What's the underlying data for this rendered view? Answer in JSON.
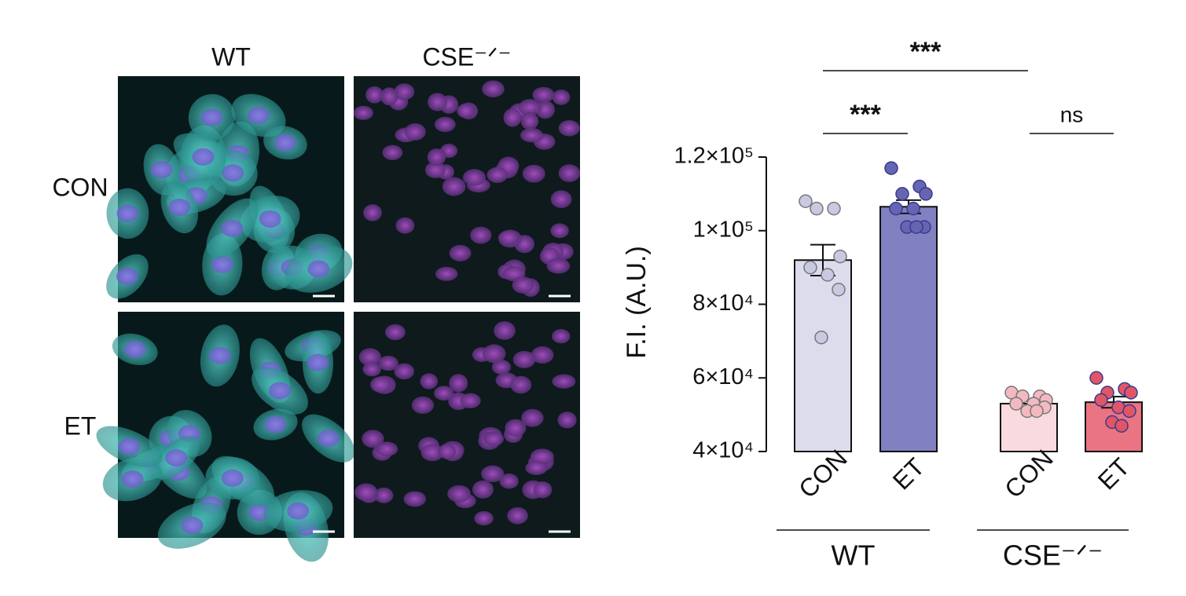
{
  "micrographs": {
    "columns": [
      "WT",
      "CSE⁻ᐟ⁻"
    ],
    "rows": [
      "CON",
      "ET"
    ]
  },
  "chart_data": {
    "type": "bar",
    "y_label": "F.I. (A.U.)",
    "categories": [
      "CON",
      "ET",
      "CON",
      "ET"
    ],
    "groups": [
      "WT",
      "CSE⁻ᐟ⁻"
    ],
    "values": [
      92000,
      106500,
      53000,
      53400
    ],
    "errors": [
      4200,
      1800,
      800,
      1500
    ],
    "colors": [
      "#dcdced",
      "#8181c2",
      "#f9dade",
      "#ea7482"
    ],
    "point_colors": [
      "#c9c9e2",
      "#6565b3",
      "#f3b9c1",
      "#e05667"
    ],
    "points": [
      [
        108000,
        106000,
        106000,
        93000,
        90000,
        88000,
        84000,
        71000
      ],
      [
        117000,
        112000,
        110000,
        110000,
        106000,
        106000,
        101000,
        101000,
        101000
      ],
      [
        56000,
        55000,
        55000,
        54000,
        53000,
        53000,
        52000,
        51000,
        51000
      ],
      [
        60000,
        57000,
        56000,
        56000,
        54000,
        52000,
        51000,
        48000,
        47000
      ]
    ],
    "comparisons": [
      "***",
      "***",
      "ns"
    ],
    "ylim": [
      40000,
      120000
    ],
    "yticks": [
      {
        "value": 40000,
        "label": "4×10⁴"
      },
      {
        "value": 60000,
        "label": "6×10⁴"
      },
      {
        "value": 80000,
        "label": "8×10⁴"
      },
      {
        "value": 100000,
        "label": "1×10⁵"
      },
      {
        "value": 120000,
        "label": "1.2×10⁵"
      }
    ]
  }
}
